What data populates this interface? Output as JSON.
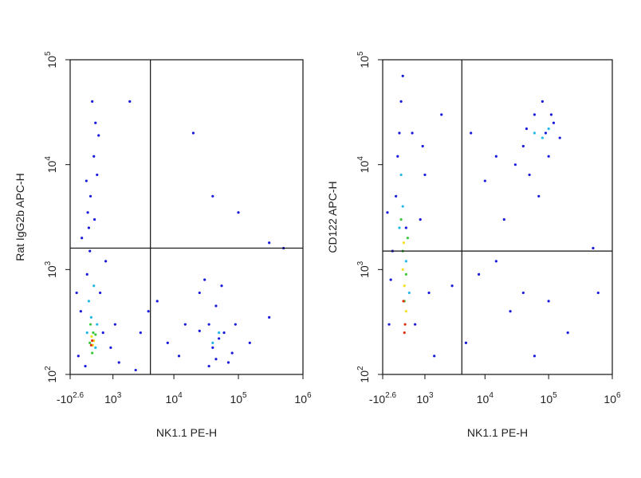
{
  "chart_data": [
    {
      "type": "scatter",
      "xlabel": "NK1.1 PE-H",
      "ylabel": "Rat IgG2b APC-H",
      "xscale": "biex",
      "ylog": true,
      "xlim": [
        -398,
        1000000
      ],
      "ylim": [
        100,
        100000
      ],
      "xticks": [
        {
          "value": -398,
          "label": "-10",
          "exponent": "2.6"
        },
        {
          "value": 1000,
          "label": "10",
          "exponent": "3"
        },
        {
          "value": 10000,
          "label": "10",
          "exponent": "4"
        },
        {
          "value": 100000,
          "label": "10",
          "exponent": "5"
        },
        {
          "value": 1000000,
          "label": "10",
          "exponent": "6"
        }
      ],
      "yticks": [
        {
          "value": 100,
          "label": "10",
          "exponent": "2"
        },
        {
          "value": 1000,
          "label": "10",
          "exponent": "3"
        },
        {
          "value": 10000,
          "label": "10",
          "exponent": "4"
        },
        {
          "value": 100000,
          "label": "10",
          "exponent": "5"
        }
      ],
      "gates": {
        "x": 4300,
        "y": 1600
      },
      "series": [
        {
          "color": "#1a1adc",
          "x": [
            -150,
            -80,
            50,
            100,
            150,
            200,
            300,
            250,
            350,
            120,
            400,
            500,
            600,
            700,
            900,
            1100,
            1300,
            -200,
            -50,
            80,
            180,
            320,
            450,
            2000,
            20000,
            40000,
            100000,
            300000,
            2500,
            3000,
            4000,
            8000,
            12000,
            15000,
            25000,
            30000,
            35000,
            45000,
            55000,
            70000,
            90000,
            150000,
            300000,
            500000,
            40000,
            60000,
            50000,
            35000,
            80000,
            45000,
            25000,
            5500
          ],
          "y": [
            150,
            400,
            120,
            900,
            2500,
            5000,
            12000,
            40000,
            25000,
            3500,
            8000,
            600,
            250,
            1200,
            180,
            300,
            130,
            600,
            2000,
            7000,
            1500,
            3000,
            19000,
            40000,
            20000,
            5000,
            3500,
            1800,
            110,
            250,
            400,
            200,
            150,
            300,
            600,
            800,
            120,
            450,
            700,
            130,
            300,
            200,
            350,
            1600,
            180,
            250,
            220,
            300,
            160,
            140,
            260,
            500
          ]
        },
        {
          "color": "#22b8e8",
          "x": [
            150,
            300,
            220,
            400,
            100,
            350,
            50000,
            40000
          ],
          "y": [
            500,
            700,
            350,
            300,
            250,
            180,
            250,
            200
          ]
        },
        {
          "color": "#3cc83c",
          "x": [
            200,
            280,
            180,
            350,
            250
          ],
          "y": [
            300,
            250,
            200,
            240,
            160
          ]
        },
        {
          "color": "#f0e020",
          "x": [
            230,
            270,
            300
          ],
          "y": [
            230,
            190,
            210
          ]
        },
        {
          "color": "#e03010",
          "x": [
            250,
            220
          ],
          "y": [
            210,
            190
          ]
        }
      ]
    },
    {
      "type": "scatter",
      "xlabel": "NK1.1 PE-H",
      "ylabel": "CD122 APC-H",
      "xscale": "biex",
      "ylog": true,
      "xlim": [
        -398,
        1000000
      ],
      "ylim": [
        100,
        100000
      ],
      "xticks": [
        {
          "value": -398,
          "label": "-10",
          "exponent": "2.6"
        },
        {
          "value": 1000,
          "label": "10",
          "exponent": "3"
        },
        {
          "value": 10000,
          "label": "10",
          "exponent": "4"
        },
        {
          "value": 100000,
          "label": "10",
          "exponent": "5"
        },
        {
          "value": 1000000,
          "label": "10",
          "exponent": "6"
        }
      ],
      "yticks": [
        {
          "value": 100,
          "label": "10",
          "exponent": "2"
        },
        {
          "value": 1000,
          "label": "10",
          "exponent": "3"
        },
        {
          "value": 10000,
          "label": "10",
          "exponent": "4"
        },
        {
          "value": 100000,
          "label": "10",
          "exponent": "5"
        }
      ],
      "gates": {
        "x": 4300,
        "y": 1500
      },
      "series": [
        {
          "color": "#1a1adc",
          "x": [
            -200,
            -100,
            0,
            50,
            100,
            150,
            200,
            -150,
            600,
            800,
            1000,
            1200,
            1500,
            500,
            300,
            -250,
            900,
            2000,
            6000,
            10000,
            15000,
            20000,
            40000,
            50000,
            60000,
            80000,
            100000,
            70000,
            120000,
            150000,
            45000,
            90000,
            110000,
            30000,
            8000,
            15000,
            25000,
            40000,
            100000,
            200000,
            500000,
            600000,
            3000,
            5000,
            60000
          ],
          "y": [
            300,
            1500,
            5000,
            12000,
            20000,
            40000,
            70000,
            800,
            300,
            3000,
            8000,
            600,
            150,
            20000,
            2500,
            3500,
            15000,
            30000,
            20000,
            7000,
            12000,
            3000,
            15000,
            8000,
            30000,
            40000,
            12000,
            5000,
            25000,
            18000,
            22000,
            20000,
            30000,
            10000,
            900,
            1200,
            400,
            600,
            500,
            250,
            1600,
            600,
            700,
            200,
            150
          ]
        },
        {
          "color": "#22b8e8",
          "x": [
            100,
            300,
            200,
            400,
            150,
            80000,
            60000,
            100000
          ],
          "y": [
            2500,
            1200,
            4000,
            600,
            8000,
            18000,
            20000,
            22000
          ]
        },
        {
          "color": "#3cc83c",
          "x": [
            200,
            300,
            150,
            250,
            350
          ],
          "y": [
            1500,
            900,
            3000,
            500,
            2000
          ]
        },
        {
          "color": "#f0e020",
          "x": [
            250,
            200,
            300,
            230
          ],
          "y": [
            700,
            1000,
            400,
            1800
          ]
        },
        {
          "color": "#e03010",
          "x": [
            270,
            220,
            250
          ],
          "y": [
            300,
            500,
            250
          ]
        }
      ]
    }
  ]
}
